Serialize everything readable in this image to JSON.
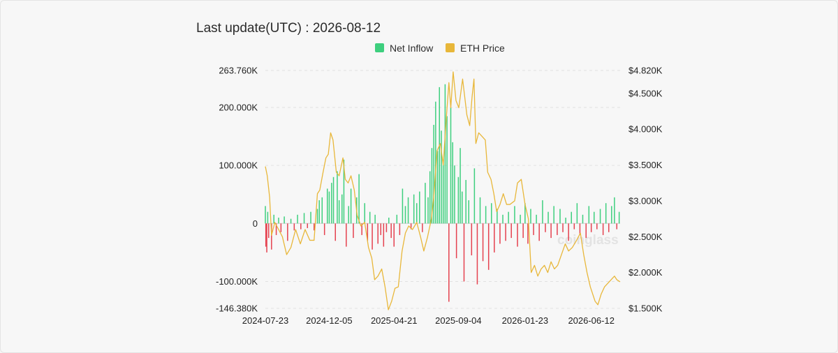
{
  "header": {
    "title": "Last update(UTC) : 2026-08-12"
  },
  "watermark": {
    "text": "coinglass"
  },
  "colors": {
    "inflow_positive": "#3ecf7e",
    "inflow_negative": "#e5414f",
    "price_line": "#e8b73a",
    "grid": "#e2e2e2"
  },
  "chart_data": {
    "type": "bar",
    "legend": {
      "position": "top-center",
      "items": [
        "Net Inflow",
        "ETH Price"
      ]
    },
    "x_tick_labels": [
      "2024-07-23",
      "2024-12-05",
      "2025-04-21",
      "2025-09-04",
      "2026-01-23",
      "2026-06-12"
    ],
    "x_ticks": [
      "2024-07-23",
      "2024-12-05",
      "2025-04-21",
      "2025-09-04",
      "2026-01-23",
      "2026-06-12"
    ],
    "x_range": [
      "2024-07-23",
      "2026-08-12"
    ],
    "y_left": {
      "name": "Net Inflow",
      "tick_labels": [
        "263.760K",
        "200.000K",
        "100.000K",
        "0",
        "-100.000K",
        "-146.380K"
      ],
      "ticks": [
        263.76,
        200,
        100,
        0,
        -100,
        -146.38
      ],
      "range": [
        -146.38,
        263.76
      ],
      "unit": "K"
    },
    "y_right": {
      "name": "ETH Price",
      "tick_labels": [
        "$4.820K",
        "$4.500K",
        "$4.000K",
        "$3.500K",
        "$3.000K",
        "$2.500K",
        "$2.000K",
        "$1.500K"
      ],
      "ticks": [
        4820,
        4500,
        4000,
        3500,
        3000,
        2500,
        2000,
        1500
      ],
      "range": [
        1500,
        4820
      ],
      "unit": "$"
    },
    "grid": true,
    "series": [
      {
        "name": "Net Inflow",
        "type": "bar",
        "unit": "K",
        "points": [
          [
            "2024-07-23",
            30
          ],
          [
            "2024-07-24",
            -40
          ],
          [
            "2024-07-26",
            -50
          ],
          [
            "2024-07-28",
            20
          ],
          [
            "2024-07-30",
            -25
          ],
          [
            "2024-08-05",
            -45
          ],
          [
            "2024-08-10",
            15
          ],
          [
            "2024-08-15",
            -20
          ],
          [
            "2024-08-20",
            10
          ],
          [
            "2024-08-25",
            -15
          ],
          [
            "2024-09-01",
            12
          ],
          [
            "2024-09-08",
            -30
          ],
          [
            "2024-09-15",
            8
          ],
          [
            "2024-09-22",
            -12
          ],
          [
            "2024-09-29",
            15
          ],
          [
            "2024-10-06",
            -10
          ],
          [
            "2024-10-13",
            18
          ],
          [
            "2024-10-20",
            -8
          ],
          [
            "2024-10-27",
            20
          ],
          [
            "2024-11-03",
            -12
          ],
          [
            "2024-11-10",
            25
          ],
          [
            "2024-11-14",
            40
          ],
          [
            "2024-11-20",
            45
          ],
          [
            "2024-11-25",
            -20
          ],
          [
            "2024-12-01",
            60
          ],
          [
            "2024-12-05",
            55
          ],
          [
            "2024-12-10",
            70
          ],
          [
            "2024-12-14",
            80
          ],
          [
            "2024-12-18",
            -30
          ],
          [
            "2024-12-22",
            90
          ],
          [
            "2024-12-26",
            40
          ],
          [
            "2025-01-01",
            50
          ],
          [
            "2025-01-05",
            110
          ],
          [
            "2025-01-10",
            -40
          ],
          [
            "2025-01-15",
            30
          ],
          [
            "2025-01-20",
            60
          ],
          [
            "2025-01-25",
            -25
          ],
          [
            "2025-02-01",
            45
          ],
          [
            "2025-02-06",
            85
          ],
          [
            "2025-02-12",
            -20
          ],
          [
            "2025-02-18",
            35
          ],
          [
            "2025-02-24",
            -30
          ],
          [
            "2025-03-01",
            20
          ],
          [
            "2025-03-06",
            -45
          ],
          [
            "2025-03-12",
            15
          ],
          [
            "2025-03-18",
            -35
          ],
          [
            "2025-03-24",
            -20
          ],
          [
            "2025-03-30",
            -40
          ],
          [
            "2025-04-05",
            -15
          ],
          [
            "2025-04-10",
            10
          ],
          [
            "2025-04-15",
            -25
          ],
          [
            "2025-04-21",
            -40
          ],
          [
            "2025-04-27",
            15
          ],
          [
            "2025-05-03",
            -20
          ],
          [
            "2025-05-09",
            60
          ],
          [
            "2025-05-15",
            30
          ],
          [
            "2025-05-21",
            45
          ],
          [
            "2025-05-27",
            -10
          ],
          [
            "2025-06-02",
            50
          ],
          [
            "2025-06-08",
            35
          ],
          [
            "2025-06-14",
            55
          ],
          [
            "2025-06-20",
            -15
          ],
          [
            "2025-06-26",
            70
          ],
          [
            "2025-07-02",
            45
          ],
          [
            "2025-07-06",
            90
          ],
          [
            "2025-07-10",
            130
          ],
          [
            "2025-07-14",
            170
          ],
          [
            "2025-07-18",
            210
          ],
          [
            "2025-07-22",
            125
          ],
          [
            "2025-07-26",
            235
          ],
          [
            "2025-07-30",
            160
          ],
          [
            "2025-08-03",
            110
          ],
          [
            "2025-08-07",
            240
          ],
          [
            "2025-08-11",
            185
          ],
          [
            "2025-08-15",
            -135
          ],
          [
            "2025-08-19",
            200
          ],
          [
            "2025-08-23",
            140
          ],
          [
            "2025-08-27",
            100
          ],
          [
            "2025-08-31",
            -60
          ],
          [
            "2025-09-04",
            80
          ],
          [
            "2025-09-08",
            130
          ],
          [
            "2025-09-12",
            55
          ],
          [
            "2025-09-16",
            -100
          ],
          [
            "2025-09-20",
            75
          ],
          [
            "2025-09-26",
            40
          ],
          [
            "2025-10-02",
            -55
          ],
          [
            "2025-10-08",
            95
          ],
          [
            "2025-10-14",
            -105
          ],
          [
            "2025-10-20",
            45
          ],
          [
            "2025-10-26",
            -65
          ],
          [
            "2025-11-01",
            30
          ],
          [
            "2025-11-07",
            -80
          ],
          [
            "2025-11-13",
            35
          ],
          [
            "2025-11-19",
            -50
          ],
          [
            "2025-11-25",
            25
          ],
          [
            "2025-12-01",
            -35
          ],
          [
            "2025-12-07",
            15
          ],
          [
            "2025-12-13",
            -30
          ],
          [
            "2025-12-19",
            20
          ],
          [
            "2025-12-25",
            -25
          ],
          [
            "2026-01-01",
            30
          ],
          [
            "2026-01-07",
            -40
          ],
          [
            "2026-01-13",
            15
          ],
          [
            "2026-01-19",
            -25
          ],
          [
            "2026-01-23",
            35
          ],
          [
            "2026-01-29",
            -35
          ],
          [
            "2026-02-04",
            25
          ],
          [
            "2026-02-10",
            -20
          ],
          [
            "2026-02-16",
            15
          ],
          [
            "2026-02-22",
            -30
          ],
          [
            "2026-03-01",
            40
          ],
          [
            "2026-03-07",
            -15
          ],
          [
            "2026-03-13",
            20
          ],
          [
            "2026-03-19",
            -25
          ],
          [
            "2026-03-25",
            30
          ],
          [
            "2026-04-01",
            -20
          ],
          [
            "2026-04-07",
            25
          ],
          [
            "2026-04-13",
            -15
          ],
          [
            "2026-04-19",
            10
          ],
          [
            "2026-04-25",
            -30
          ],
          [
            "2026-05-01",
            20
          ],
          [
            "2026-05-07",
            -10
          ],
          [
            "2026-05-13",
            35
          ],
          [
            "2026-05-19",
            -20
          ],
          [
            "2026-05-25",
            15
          ],
          [
            "2026-06-01",
            -25
          ],
          [
            "2026-06-07",
            30
          ],
          [
            "2026-06-12",
            -15
          ],
          [
            "2026-06-18",
            20
          ],
          [
            "2026-06-24",
            -10
          ],
          [
            "2026-07-01",
            25
          ],
          [
            "2026-07-07",
            -20
          ],
          [
            "2026-07-13",
            35
          ],
          [
            "2026-07-19",
            -15
          ],
          [
            "2026-07-25",
            30
          ],
          [
            "2026-07-31",
            45
          ],
          [
            "2026-08-05",
            -10
          ],
          [
            "2026-08-10",
            20
          ]
        ]
      },
      {
        "name": "ETH Price",
        "type": "line",
        "unit": "$",
        "points": [
          [
            "2024-07-23",
            3480
          ],
          [
            "2024-07-27",
            3350
          ],
          [
            "2024-08-01",
            3050
          ],
          [
            "2024-08-05",
            2520
          ],
          [
            "2024-08-12",
            2700
          ],
          [
            "2024-08-20",
            2600
          ],
          [
            "2024-08-28",
            2500
          ],
          [
            "2024-09-06",
            2250
          ],
          [
            "2024-09-15",
            2350
          ],
          [
            "2024-09-25",
            2600
          ],
          [
            "2024-10-05",
            2400
          ],
          [
            "2024-10-15",
            2600
          ],
          [
            "2024-10-25",
            2450
          ],
          [
            "2024-11-03",
            2450
          ],
          [
            "2024-11-10",
            3100
          ],
          [
            "2024-11-15",
            3150
          ],
          [
            "2024-11-22",
            3400
          ],
          [
            "2024-11-28",
            3600
          ],
          [
            "2024-12-03",
            3650
          ],
          [
            "2024-12-08",
            3950
          ],
          [
            "2024-12-13",
            3850
          ],
          [
            "2024-12-20",
            3400
          ],
          [
            "2024-12-26",
            3350
          ],
          [
            "2025-01-03",
            3600
          ],
          [
            "2025-01-08",
            3300
          ],
          [
            "2025-01-14",
            3250
          ],
          [
            "2025-01-20",
            3350
          ],
          [
            "2025-01-27",
            3150
          ],
          [
            "2025-02-02",
            2800
          ],
          [
            "2025-02-10",
            2650
          ],
          [
            "2025-02-18",
            2700
          ],
          [
            "2025-02-26",
            2350
          ],
          [
            "2025-03-05",
            2200
          ],
          [
            "2025-03-11",
            1900
          ],
          [
            "2025-03-18",
            1950
          ],
          [
            "2025-03-26",
            2050
          ],
          [
            "2025-04-02",
            1800
          ],
          [
            "2025-04-09",
            1480
          ],
          [
            "2025-04-16",
            1600
          ],
          [
            "2025-04-23",
            1780
          ],
          [
            "2025-04-30",
            1800
          ],
          [
            "2025-05-08",
            2300
          ],
          [
            "2025-05-15",
            2550
          ],
          [
            "2025-05-22",
            2650
          ],
          [
            "2025-05-30",
            2600
          ],
          [
            "2025-06-08",
            2700
          ],
          [
            "2025-06-16",
            2500
          ],
          [
            "2025-06-23",
            2300
          ],
          [
            "2025-07-01",
            2500
          ],
          [
            "2025-07-09",
            2750
          ],
          [
            "2025-07-14",
            3050
          ],
          [
            "2025-07-21",
            3700
          ],
          [
            "2025-07-28",
            3800
          ],
          [
            "2025-08-03",
            3500
          ],
          [
            "2025-08-10",
            4200
          ],
          [
            "2025-08-15",
            4650
          ],
          [
            "2025-08-19",
            4300
          ],
          [
            "2025-08-24",
            4800
          ],
          [
            "2025-08-30",
            4400
          ],
          [
            "2025-09-05",
            4300
          ],
          [
            "2025-09-13",
            4700
          ],
          [
            "2025-09-22",
            4200
          ],
          [
            "2025-09-28",
            4050
          ],
          [
            "2025-10-03",
            4450
          ],
          [
            "2025-10-07",
            4700
          ],
          [
            "2025-10-11",
            3800
          ],
          [
            "2025-10-17",
            3950
          ],
          [
            "2025-10-24",
            3900
          ],
          [
            "2025-10-31",
            3850
          ],
          [
            "2025-11-05",
            3400
          ],
          [
            "2025-11-12",
            3300
          ],
          [
            "2025-11-18",
            3100
          ],
          [
            "2025-11-24",
            2850
          ],
          [
            "2025-12-01",
            2950
          ],
          [
            "2025-12-08",
            3100
          ],
          [
            "2025-12-15",
            2950
          ],
          [
            "2025-12-22",
            2950
          ],
          [
            "2026-01-01",
            3000
          ],
          [
            "2026-01-07",
            3250
          ],
          [
            "2026-01-15",
            3300
          ],
          [
            "2026-01-23",
            2950
          ],
          [
            "2026-01-30",
            2750
          ],
          [
            "2026-02-05",
            2000
          ],
          [
            "2026-02-12",
            2100
          ],
          [
            "2026-02-19",
            1950
          ],
          [
            "2026-02-26",
            2050
          ],
          [
            "2026-03-05",
            2100
          ],
          [
            "2026-03-12",
            2000
          ],
          [
            "2026-03-19",
            2150
          ],
          [
            "2026-03-26",
            2050
          ],
          [
            "2026-04-02",
            2100
          ],
          [
            "2026-04-10",
            2250
          ],
          [
            "2026-04-18",
            2400
          ],
          [
            "2026-04-25",
            2300
          ],
          [
            "2026-05-03",
            2350
          ],
          [
            "2026-05-12",
            2450
          ],
          [
            "2026-05-20",
            2550
          ],
          [
            "2026-05-27",
            2250
          ],
          [
            "2026-06-03",
            2000
          ],
          [
            "2026-06-10",
            1800
          ],
          [
            "2026-06-15",
            1700
          ],
          [
            "2026-06-20",
            1600
          ],
          [
            "2026-06-26",
            1550
          ],
          [
            "2026-07-03",
            1700
          ],
          [
            "2026-07-10",
            1800
          ],
          [
            "2026-07-17",
            1850
          ],
          [
            "2026-07-24",
            1900
          ],
          [
            "2026-07-31",
            1950
          ],
          [
            "2026-08-05",
            1900
          ],
          [
            "2026-08-12",
            1870
          ]
        ]
      }
    ]
  }
}
